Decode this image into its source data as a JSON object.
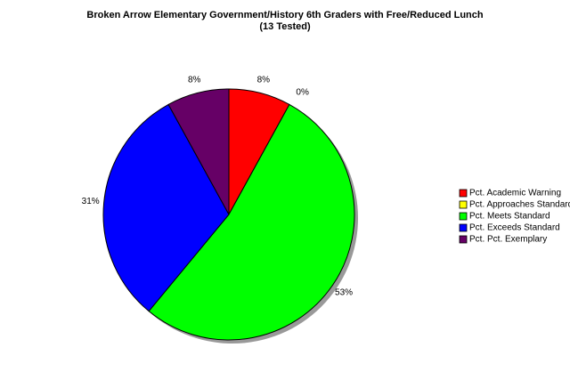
{
  "chart_data": {
    "type": "pie",
    "title": "Broken Arrow Elementary Government/History 6th Graders with Free/Reduced Lunch",
    "subtitle": "(13 Tested)",
    "categories": [
      "Pct. Academic Warning",
      "Pct. Approaches Standard",
      "Pct. Meets Standard",
      "Pct. Exceeds Standard",
      "Pct. Pct. Exemplary"
    ],
    "values": [
      8,
      0,
      53,
      31,
      8
    ],
    "value_labels": [
      "8%",
      "0%",
      "53%",
      "31%",
      "8%"
    ],
    "colors": [
      "#ff0000",
      "#ffff00",
      "#00ff00",
      "#0000ff",
      "#660066"
    ],
    "legend": "right"
  }
}
